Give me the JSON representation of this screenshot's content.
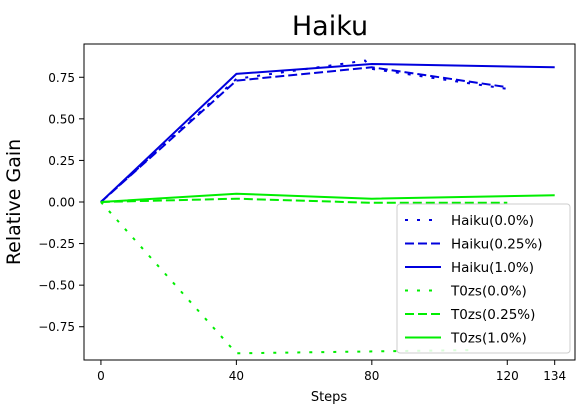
{
  "chart_data": {
    "type": "line",
    "title": "Haiku",
    "xlabel": "Steps",
    "ylabel": "Relative Gain",
    "xticks": [
      0,
      40,
      80,
      120,
      134
    ],
    "yticks": [
      0.75,
      0.5,
      0.25,
      0.0,
      -0.25,
      -0.5,
      -0.75
    ],
    "ytick_labels": [
      "0.75",
      "0.50",
      "0.25",
      "0.00",
      "−0.25",
      "−0.50",
      "−0.75"
    ],
    "xlim": [
      -5,
      140
    ],
    "ylim": [
      -0.95,
      0.95
    ],
    "grid": false,
    "legend_position": "lower-right",
    "series": [
      {
        "name": "Haiku(0.0%)",
        "color": "#0000dd",
        "style": "dotted",
        "x": [
          0,
          40,
          78,
          80,
          120
        ],
        "y": [
          0.0,
          0.74,
          0.85,
          0.8,
          0.68
        ]
      },
      {
        "name": "Haiku(0.25%)",
        "color": "#0000dd",
        "style": "dashed",
        "x": [
          0,
          40,
          80,
          120
        ],
        "y": [
          0.0,
          0.73,
          0.81,
          0.69
        ]
      },
      {
        "name": "Haiku(1.0%)",
        "color": "#0000dd",
        "style": "solid",
        "x": [
          0,
          40,
          80,
          134
        ],
        "y": [
          0.0,
          0.77,
          0.83,
          0.81
        ]
      },
      {
        "name": "T0zs(0.0%)",
        "color": "#00ee00",
        "style": "dotted",
        "x": [
          0,
          40,
          110
        ],
        "y": [
          0.0,
          -0.91,
          -0.89
        ]
      },
      {
        "name": "T0zs(0.25%)",
        "color": "#00ee00",
        "style": "dashed",
        "x": [
          0,
          40,
          80,
          120
        ],
        "y": [
          0.0,
          0.02,
          -0.005,
          -0.005
        ]
      },
      {
        "name": "T0zs(1.0%)",
        "color": "#00ee00",
        "style": "solid",
        "x": [
          0,
          40,
          80,
          134
        ],
        "y": [
          0.0,
          0.05,
          0.02,
          0.04
        ]
      }
    ]
  }
}
